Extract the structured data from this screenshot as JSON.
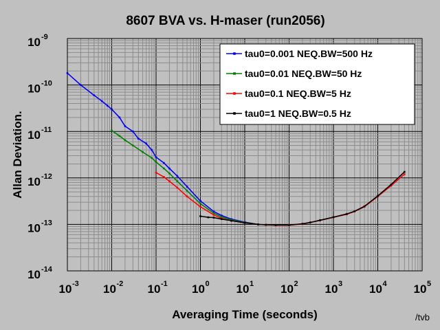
{
  "chart_data": {
    "type": "line",
    "title": "8607 BVA vs. H-maser (run2056)",
    "xlabel": "Averaging Time (seconds)",
    "ylabel": "Allan Deviation.",
    "x_scale": "log",
    "y_scale": "log",
    "xlim": [
      0.001,
      100000
    ],
    "ylim": [
      1e-14,
      1e-09
    ],
    "x_tick_labels": [
      {
        "value": 0.001,
        "base": "10",
        "exp": "-3"
      },
      {
        "value": 0.01,
        "base": "10",
        "exp": "-2"
      },
      {
        "value": 0.1,
        "base": "10",
        "exp": "-1"
      },
      {
        "value": 1,
        "base": "10",
        "exp": "0"
      },
      {
        "value": 10,
        "base": "10",
        "exp": "1"
      },
      {
        "value": 100,
        "base": "10",
        "exp": "2"
      },
      {
        "value": 1000,
        "base": "10",
        "exp": "3"
      },
      {
        "value": 10000,
        "base": "10",
        "exp": "4"
      },
      {
        "value": 100000,
        "base": "10",
        "exp": "5"
      }
    ],
    "y_tick_labels": [
      {
        "value": 1e-14,
        "base": "10",
        "exp": "-14"
      },
      {
        "value": 1e-13,
        "base": "10",
        "exp": "-13"
      },
      {
        "value": 1e-12,
        "base": "10",
        "exp": "-12"
      },
      {
        "value": 1e-11,
        "base": "10",
        "exp": "-11"
      },
      {
        "value": 1e-10,
        "base": "10",
        "exp": "-10"
      },
      {
        "value": 1e-09,
        "base": "10",
        "exp": "-9"
      }
    ],
    "grid": true,
    "legend_position": "top-right",
    "series": [
      {
        "name": "tau0=0.001 NEQ.BW=500 Hz",
        "color": "#0000ff",
        "x": [
          0.001,
          0.002,
          0.004,
          0.006,
          0.008,
          0.01,
          0.015,
          0.02,
          0.03,
          0.04,
          0.06,
          0.08,
          0.1,
          0.15,
          0.2,
          0.3,
          0.5,
          1,
          2,
          3,
          5,
          10,
          20
        ],
        "y": [
          1.8e-10,
          1e-10,
          6e-11,
          4.5e-11,
          3.6e-11,
          3e-11,
          2e-11,
          1.3e-11,
          1e-11,
          7e-12,
          5.5e-12,
          4e-12,
          2.8e-12,
          2.1e-12,
          1.6e-12,
          1.1e-12,
          6.5e-13,
          3.2e-13,
          1.9e-13,
          1.55e-13,
          1.3e-13,
          1.12e-13,
          1e-13
        ]
      },
      {
        "name": "tau0=0.01 NEQ.BW=50 Hz",
        "color": "#008000",
        "x": [
          0.01,
          0.015,
          0.02,
          0.03,
          0.05,
          0.08,
          0.1,
          0.15,
          0.2,
          0.3,
          0.5,
          1,
          2,
          3,
          5,
          10,
          20
        ],
        "y": [
          1.05e-11,
          8e-12,
          6.5e-12,
          5e-12,
          3.6e-12,
          2.7e-12,
          2.2e-12,
          1.6e-12,
          1.25e-12,
          8.5e-13,
          5.3e-13,
          2.8e-13,
          1.75e-13,
          1.45e-13,
          1.25e-13,
          1.1e-13,
          1e-13
        ]
      },
      {
        "name": "tau0=0.1 NEQ.BW=5 Hz",
        "color": "#ff0000",
        "x": [
          0.1,
          0.15,
          0.2,
          0.3,
          0.5,
          1,
          2,
          3,
          5,
          10,
          20,
          30,
          50,
          100,
          200,
          300,
          500,
          1000,
          2000,
          3000,
          5000,
          10000,
          20000,
          40000
        ],
        "y": [
          1.3e-12,
          1.05e-12,
          8.5e-13,
          6.2e-13,
          4e-13,
          2.4e-13,
          1.6e-13,
          1.35e-13,
          1.2e-13,
          1.08e-13,
          1e-13,
          9.8e-14,
          9.6e-14,
          9.6e-14,
          1.02e-13,
          1.1e-13,
          1.22e-13,
          1.42e-13,
          1.65e-13,
          1.9e-13,
          2.4e-13,
          4e-13,
          6.8e-13,
          1.2e-12
        ]
      },
      {
        "name": "tau0=1 NEQ.BW=0.5 Hz",
        "color": "#000000",
        "x": [
          1,
          1.5,
          2,
          3,
          5,
          10,
          20,
          30,
          50,
          100,
          200,
          300,
          500,
          1000,
          2000,
          3000,
          5000,
          10000,
          20000,
          40000
        ],
        "y": [
          1.5e-13,
          1.42e-13,
          1.4e-13,
          1.3e-13,
          1.2e-13,
          1.08e-13,
          1e-13,
          9.8e-14,
          9.7e-14,
          9.7e-14,
          1.03e-13,
          1.1e-13,
          1.23e-13,
          1.43e-13,
          1.68e-13,
          1.92e-13,
          2.45e-13,
          4.1e-13,
          7.2e-13,
          1.35e-12
        ]
      }
    ]
  },
  "credit": "/tvb"
}
